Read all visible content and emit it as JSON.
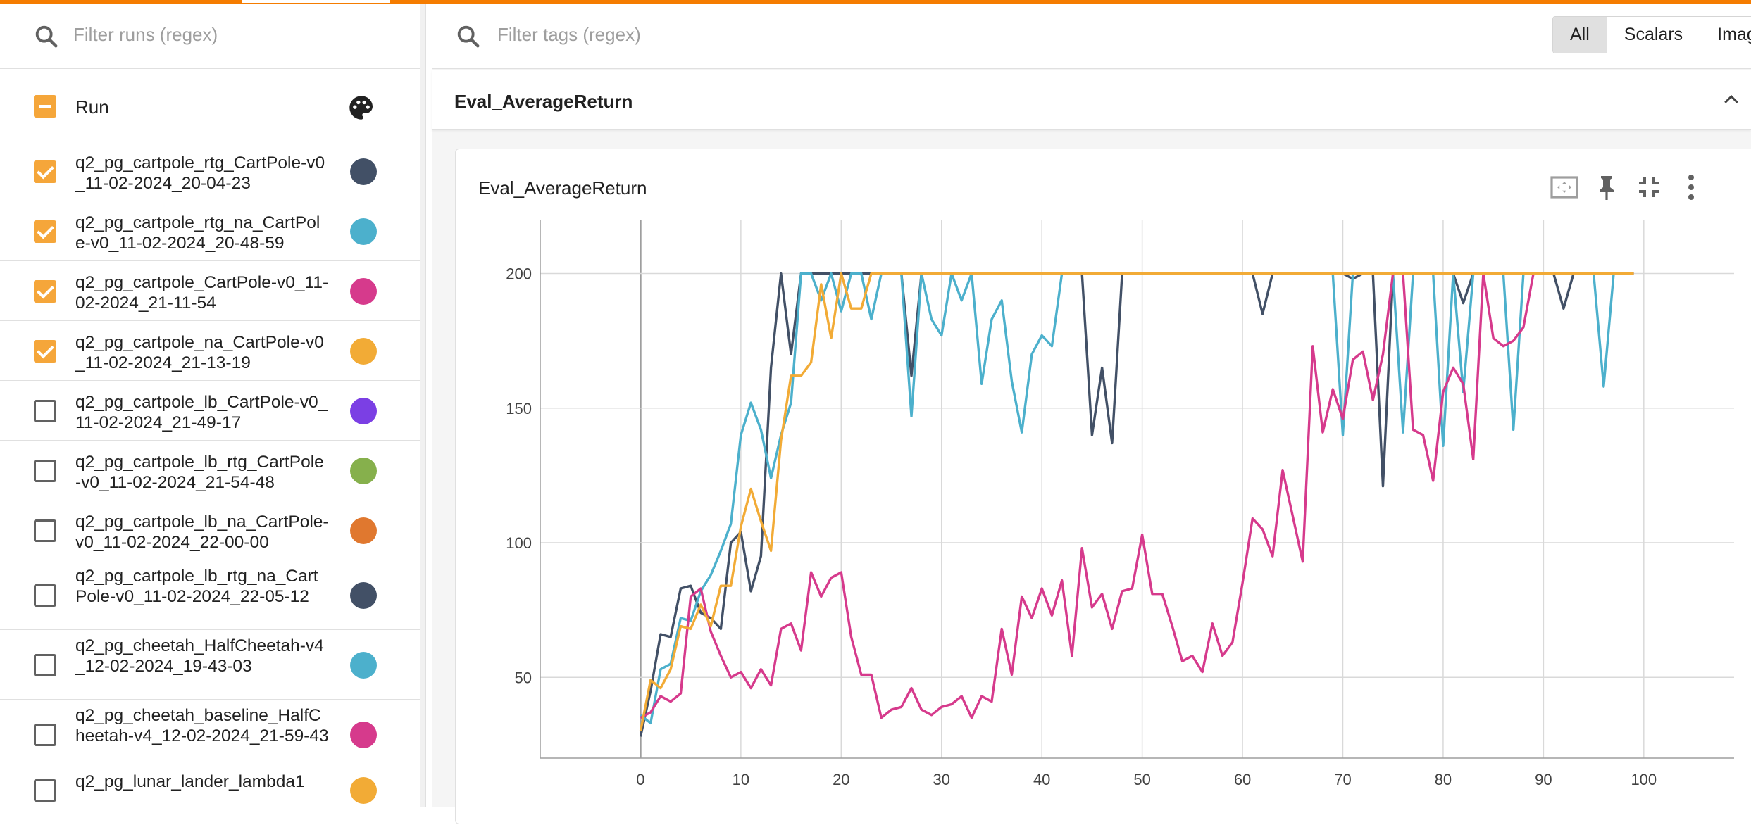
{
  "sidebar": {
    "filter_placeholder": "Filter runs (regex)",
    "header_label": "Run",
    "runs": [
      {
        "name": "q2_pg_cartpole_rtg_CartPole-v0_11-02-2024_20-04-23",
        "checked": true,
        "color": "#425066"
      },
      {
        "name": "q2_pg_cartpole_rtg_na_CartPole-v0_11-02-2024_20-48-59",
        "checked": true,
        "color": "#4cb0cc"
      },
      {
        "name": "q2_pg_cartpole_CartPole-v0_11-02-2024_21-11-54",
        "checked": true,
        "color": "#d63a8c"
      },
      {
        "name": "q2_pg_cartpole_na_CartPole-v0_11-02-2024_21-13-19",
        "checked": true,
        "color": "#f2ab36"
      },
      {
        "name": "q2_pg_cartpole_lb_CartPole-v0_11-02-2024_21-49-17",
        "checked": false,
        "color": "#7b3fe4"
      },
      {
        "name": "q2_pg_cartpole_lb_rtg_CartPole-v0_11-02-2024_21-54-48",
        "checked": false,
        "color": "#86b04c"
      },
      {
        "name": "q2_pg_cartpole_lb_na_CartPole-v0_11-02-2024_22-00-00",
        "checked": false,
        "color": "#e0782f"
      },
      {
        "name": "q2_pg_cartpole_lb_rtg_na_CartPole-v0_11-02-2024_22-05-12",
        "checked": false,
        "color": "#425066"
      },
      {
        "name": "q2_pg_cheetah_HalfCheetah-v4_12-02-2024_19-43-03",
        "checked": false,
        "color": "#4cb0cc"
      },
      {
        "name": "q2_pg_cheetah_baseline_HalfCheetah-v4_12-02-2024_21-59-43",
        "checked": false,
        "color": "#d63a8c"
      },
      {
        "name": "q2_pg_lunar_lander_lambda1",
        "checked": false,
        "color": "#f2ab36"
      }
    ]
  },
  "main": {
    "tag_filter_placeholder": "Filter tags (regex)",
    "type_buttons": [
      "All",
      "Scalars",
      "Imag"
    ],
    "active_type": "All",
    "group_title": "Eval_AverageReturn",
    "card_title": "Eval_AverageReturn",
    "icons": [
      "fit-domain-icon",
      "pin-icon",
      "collapse-icon",
      "more-vert-icon"
    ]
  },
  "chart_data": {
    "type": "line",
    "title": "Eval_AverageReturn",
    "xlabel": "",
    "ylabel": "",
    "xlim": [
      -10,
      109
    ],
    "ylim": [
      20,
      220
    ],
    "xticks": [
      0,
      10,
      20,
      30,
      40,
      50,
      60,
      70,
      80,
      90,
      100
    ],
    "yticks": [
      50,
      100,
      150,
      200
    ],
    "grid": true,
    "series": [
      {
        "name": "q2_pg_cartpole_rtg_CartPole-v0_11-02-2024_20-04-23",
        "color": "#425066",
        "values": [
          28,
          45,
          66,
          65,
          83,
          84,
          74,
          72,
          68,
          100,
          104,
          82,
          95,
          165,
          200,
          170,
          200,
          200,
          200,
          200,
          200,
          200,
          200,
          200,
          200,
          200,
          200,
          162,
          200,
          200,
          200,
          200,
          200,
          200,
          200,
          200,
          200,
          200,
          200,
          200,
          200,
          200,
          200,
          200,
          200,
          140,
          165,
          137,
          200,
          200,
          200,
          200,
          200,
          200,
          200,
          200,
          200,
          200,
          200,
          200,
          200,
          200,
          185,
          200,
          200,
          200,
          200,
          200,
          200,
          200,
          200,
          198,
          200,
          200,
          121,
          200,
          200,
          200,
          200,
          200,
          200,
          200,
          189,
          200,
          200,
          200,
          200,
          200,
          200,
          200,
          200,
          200,
          187,
          200,
          200,
          200,
          200,
          200,
          200,
          200
        ]
      },
      {
        "name": "q2_pg_cartpole_rtg_na_CartPole-v0_11-02-2024_20-48-59",
        "color": "#4cb0cc",
        "values": [
          36,
          33,
          53,
          55,
          72,
          71,
          82,
          88,
          97,
          107,
          140,
          152,
          142,
          124,
          140,
          152,
          200,
          200,
          190,
          200,
          186,
          200,
          200,
          183,
          200,
          200,
          200,
          147,
          200,
          183,
          177,
          200,
          190,
          200,
          159,
          183,
          190,
          160,
          141,
          170,
          177,
          173,
          200,
          200,
          200,
          200,
          200,
          200,
          200,
          200,
          200,
          200,
          200,
          200,
          200,
          200,
          200,
          200,
          200,
          200,
          200,
          200,
          200,
          200,
          200,
          200,
          200,
          200,
          200,
          200,
          140,
          200,
          200,
          200,
          200,
          200,
          141,
          200,
          200,
          200,
          136,
          200,
          156,
          200,
          200,
          200,
          200,
          142,
          200,
          200,
          200,
          200,
          200,
          200,
          200,
          200,
          158,
          200,
          200,
          200
        ]
      },
      {
        "name": "q2_pg_cartpole_CartPole-v0_11-02-2024_21-11-54",
        "color": "#d63a8c",
        "values": [
          35,
          37,
          43,
          41,
          44,
          80,
          83,
          67,
          58,
          50,
          52,
          46,
          53,
          47,
          68,
          70,
          60,
          89,
          80,
          87,
          89,
          65,
          51,
          51,
          35,
          38,
          39,
          46,
          38,
          36,
          39,
          40,
          43,
          35,
          43,
          41,
          68,
          51,
          80,
          72,
          83,
          73,
          86,
          58,
          98,
          76,
          81,
          68,
          82,
          83,
          103,
          81,
          81,
          69,
          56,
          58,
          52,
          70,
          58,
          63,
          85,
          109,
          105,
          95,
          127,
          110,
          93,
          173,
          141,
          157,
          146,
          168,
          171,
          153,
          170,
          200,
          200,
          142,
          140,
          123,
          156,
          165,
          159,
          131,
          200,
          176,
          173,
          175,
          180,
          200,
          200,
          200,
          200,
          200,
          200,
          200,
          200,
          200,
          200,
          200
        ]
      },
      {
        "name": "q2_pg_cartpole_na_CartPole-v0_11-02-2024_21-13-19",
        "color": "#f2ab36",
        "values": [
          30,
          49,
          46,
          53,
          69,
          68,
          77,
          69,
          84,
          84,
          106,
          120,
          108,
          97,
          138,
          162,
          162,
          167,
          196,
          176,
          200,
          187,
          187,
          200,
          200,
          200,
          200,
          200,
          200,
          200,
          200,
          200,
          200,
          200,
          200,
          200,
          200,
          200,
          200,
          200,
          200,
          200,
          200,
          200,
          200,
          200,
          200,
          200,
          200,
          200,
          200,
          200,
          200,
          200,
          200,
          200,
          200,
          200,
          200,
          200,
          200,
          200,
          200,
          200,
          200,
          200,
          200,
          200,
          200,
          200,
          200,
          200,
          200,
          200,
          200,
          200,
          200,
          200,
          200,
          200,
          200,
          200,
          200,
          200,
          200,
          200,
          200,
          200,
          200,
          200,
          200,
          200,
          200,
          200,
          200,
          200,
          200,
          200,
          200,
          200
        ]
      }
    ]
  }
}
